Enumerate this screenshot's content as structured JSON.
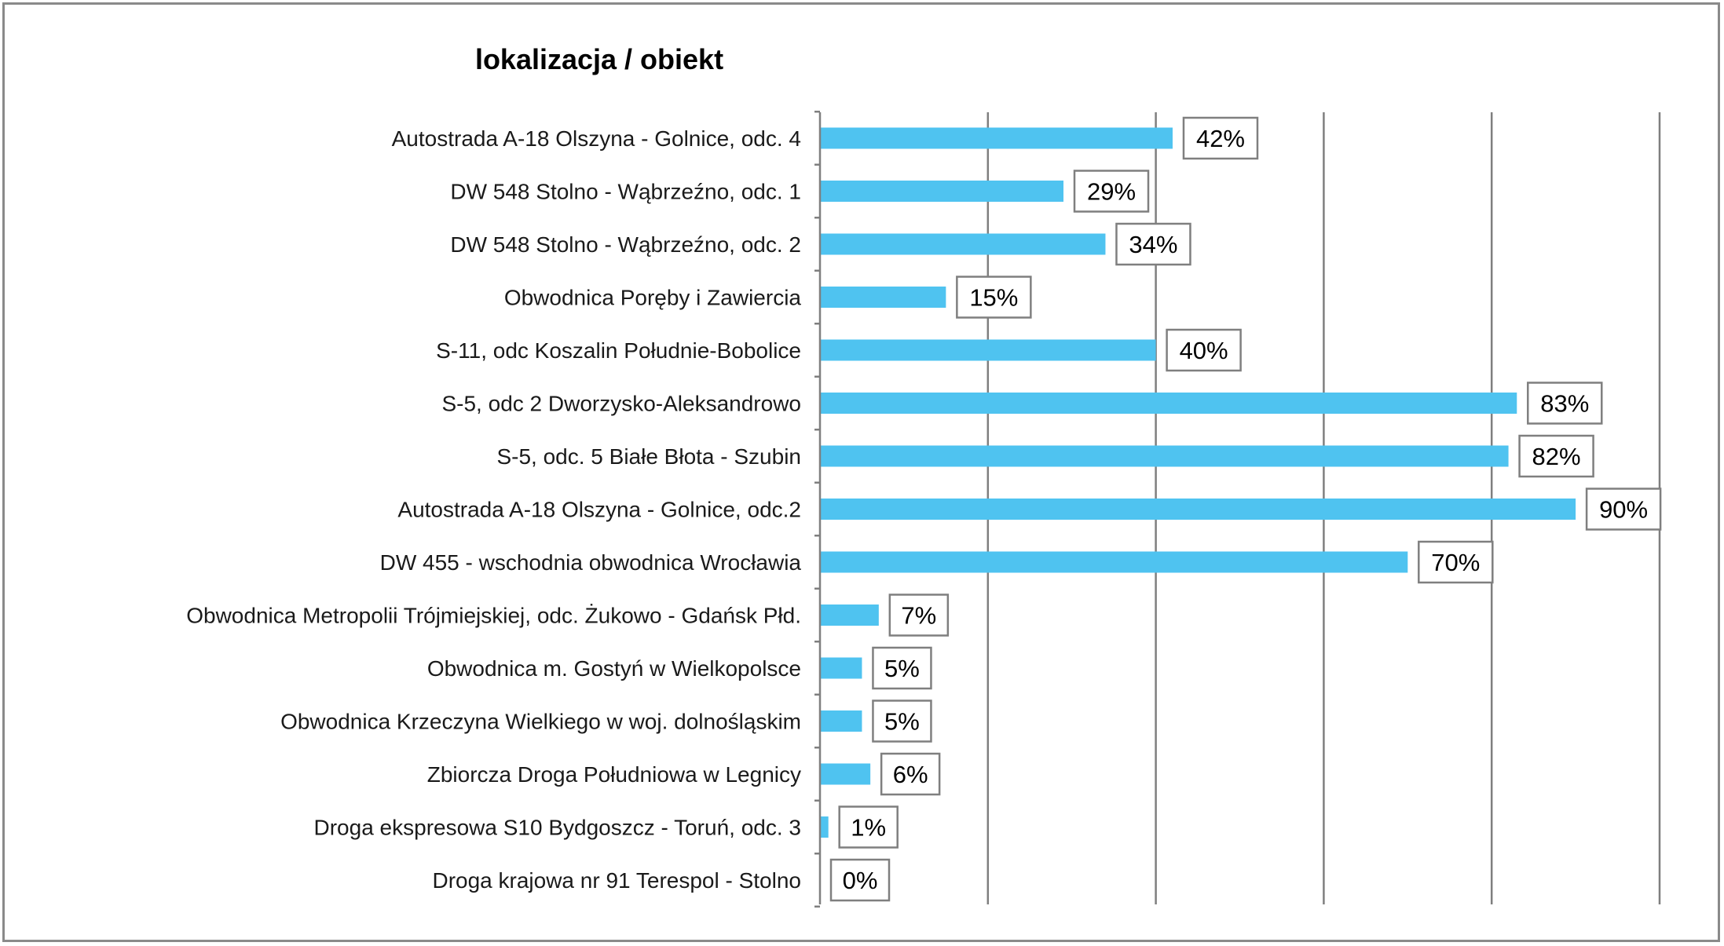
{
  "chart_data": {
    "type": "bar",
    "orientation": "horizontal",
    "title": "lokalizacja / obiekt",
    "categories": [
      "Autostrada A-18 Olszyna - Golnice, odc. 4",
      "DW 548 Stolno - Wąbrzeźno, odc. 1",
      "DW 548 Stolno - Wąbrzeźno, odc. 2",
      "Obwodnica Poręby i Zawiercia",
      "S-11, odc Koszalin Południe-Bobolice",
      "S-5, odc 2 Dworzysko-Aleksandrowo",
      "S-5, odc. 5 Białe Błota - Szubin",
      "Autostrada A-18 Olszyna - Golnice, odc.2",
      "DW 455 - wschodnia obwodnica Wrocławia",
      "Obwodnica Metropolii Trójmiejskiej, odc. Żukowo - Gdańsk Płd.",
      "Obwodnica m. Gostyń w Wielkopolsce",
      "Obwodnica  Krzeczyna Wielkiego w woj. dolnośląskim",
      "Zbiorcza Droga Południowa w Legnicy",
      "Droga ekspresowa S10 Bydgoszcz - Toruń, odc. 3",
      "Droga krajowa nr 91 Terespol - Stolno"
    ],
    "values": [
      42,
      29,
      34,
      15,
      40,
      83,
      82,
      90,
      70,
      7,
      5,
      5,
      6,
      1,
      0
    ],
    "data_labels": [
      "42%",
      "29%",
      "34%",
      "15%",
      "40%",
      "83%",
      "82%",
      "90%",
      "70%",
      "7%",
      "5%",
      "5%",
      "6%",
      "1%",
      "0%"
    ],
    "xlim": [
      0,
      100
    ],
    "unit": "%",
    "grid": true,
    "legend": "none",
    "bar_color": "#4fc3f0",
    "grid_color": "#7f7f7f",
    "label_border_color": "#7f7f7f"
  }
}
